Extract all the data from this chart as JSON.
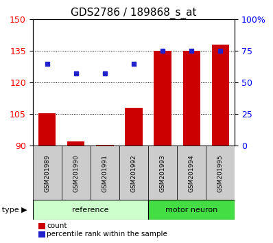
{
  "title": "GDS2786 / 189868_s_at",
  "samples": [
    "GSM201989",
    "GSM201990",
    "GSM201991",
    "GSM201992",
    "GSM201993",
    "GSM201994",
    "GSM201995"
  ],
  "bar_values": [
    105.5,
    92.0,
    90.5,
    108.0,
    135.0,
    135.0,
    138.0
  ],
  "percentile_values": [
    65,
    57,
    57,
    65,
    75,
    75,
    75
  ],
  "bar_color": "#cc0000",
  "dot_color": "#2222cc",
  "ylim_left": [
    90,
    150
  ],
  "ylim_right": [
    0,
    100
  ],
  "yticks_left": [
    90,
    105,
    120,
    135,
    150
  ],
  "yticks_right": [
    0,
    25,
    50,
    75,
    100
  ],
  "ytick_labels_right": [
    "0",
    "25",
    "50",
    "75",
    "100%"
  ],
  "ref_count": 4,
  "ref_label": "reference",
  "mn_label": "motor neuron",
  "ref_color": "#ccffcc",
  "mn_color": "#44dd44",
  "sample_box_color": "#cccccc",
  "cell_type_label": "cell type",
  "legend_count_label": "count",
  "legend_pct_label": "percentile rank within the sample",
  "title_fontsize": 11,
  "tick_fontsize": 9,
  "sample_fontsize": 6.5,
  "group_fontsize": 8,
  "legend_fontsize": 7.5
}
